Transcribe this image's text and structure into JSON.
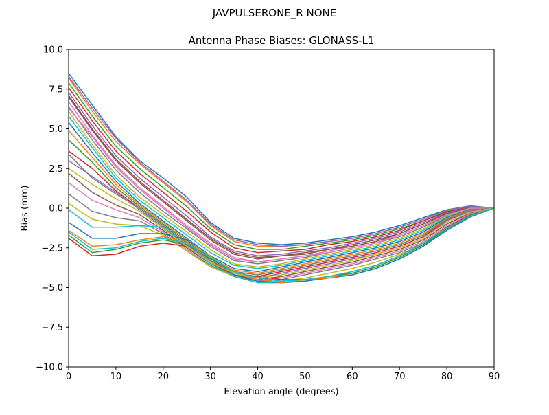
{
  "figure": {
    "suptitle": "JAVPULSERONE_R  NONE"
  },
  "chart_data": {
    "type": "line",
    "title": "Antenna Phase Biases: GLONASS-L1",
    "xlabel": "Elevation angle (degrees)",
    "ylabel": "Bias (mm)",
    "xlim": [
      0,
      90
    ],
    "ylim": [
      -10,
      10
    ],
    "xticks": [
      0,
      10,
      20,
      30,
      40,
      50,
      60,
      70,
      80,
      90
    ],
    "yticks": [
      -10.0,
      -7.5,
      -5.0,
      -2.5,
      0.0,
      2.5,
      5.0,
      7.5,
      10.0
    ],
    "xtick_labels": [
      "0",
      "10",
      "20",
      "30",
      "40",
      "50",
      "60",
      "70",
      "80",
      "90"
    ],
    "ytick_labels": [
      "−10.0",
      "−7.5",
      "−5.0",
      "−2.5",
      "0.0",
      "2.5",
      "5.0",
      "7.5",
      "10.0"
    ],
    "grid": false,
    "legend": "none",
    "x": [
      0,
      5,
      10,
      15,
      20,
      25,
      30,
      35,
      40,
      45,
      50,
      55,
      60,
      65,
      70,
      75,
      80,
      85,
      90
    ],
    "colors": [
      "#1f77b4",
      "#ff7f0e",
      "#2ca02c",
      "#d62728",
      "#9467bd",
      "#8c564b",
      "#e377c2",
      "#7f7f7f",
      "#bcbd22",
      "#17becf"
    ],
    "series": [
      {
        "values": [
          8.5,
          6.5,
          4.5,
          3.0,
          1.9,
          0.7,
          -0.9,
          -1.9,
          -2.2,
          -2.3,
          -2.2,
          -2.0,
          -1.8,
          -1.5,
          -1.1,
          -0.6,
          -0.1,
          0.15,
          0.0
        ]
      },
      {
        "values": [
          8.2,
          6.1,
          4.2,
          2.8,
          1.6,
          0.4,
          -1.1,
          -2.1,
          -2.4,
          -2.4,
          -2.3,
          -2.1,
          -1.9,
          -1.6,
          -1.2,
          -0.7,
          -0.15,
          0.12,
          0.0
        ]
      },
      {
        "values": [
          7.9,
          5.8,
          3.9,
          2.5,
          1.3,
          0.1,
          -1.3,
          -2.3,
          -2.6,
          -2.6,
          -2.4,
          -2.2,
          -2.0,
          -1.7,
          -1.3,
          -0.8,
          -0.2,
          0.1,
          0.0
        ]
      },
      {
        "values": [
          7.6,
          5.5,
          3.6,
          2.2,
          1.0,
          -0.2,
          -1.5,
          -2.5,
          -2.8,
          -2.7,
          -2.6,
          -2.3,
          -2.1,
          -1.8,
          -1.4,
          -0.8,
          -0.25,
          0.08,
          0.0
        ]
      },
      {
        "values": [
          7.3,
          5.2,
          3.3,
          1.9,
          0.7,
          -0.5,
          -1.8,
          -2.7,
          -3.0,
          -2.9,
          -2.7,
          -2.5,
          -2.2,
          -1.9,
          -1.5,
          -0.9,
          -0.3,
          0.06,
          0.0
        ]
      },
      {
        "values": [
          7.0,
          4.9,
          3.0,
          1.6,
          0.4,
          -0.8,
          -2.0,
          -2.9,
          -3.2,
          -3.0,
          -2.8,
          -2.6,
          -2.3,
          -2.0,
          -1.6,
          -1.0,
          -0.35,
          0.04,
          0.0
        ]
      },
      {
        "values": [
          6.7,
          4.6,
          2.7,
          1.3,
          0.1,
          -1.1,
          -2.2,
          -3.1,
          -3.4,
          -3.2,
          -3.0,
          -2.7,
          -2.4,
          -2.1,
          -1.7,
          -1.1,
          -0.4,
          0.02,
          0.0
        ]
      },
      {
        "values": [
          6.4,
          4.3,
          2.4,
          1.0,
          -0.2,
          -1.3,
          -2.4,
          -3.3,
          -3.5,
          -3.3,
          -3.1,
          -2.8,
          -2.5,
          -2.2,
          -1.8,
          -1.2,
          -0.45,
          0.0,
          0.0
        ]
      },
      {
        "values": [
          6.1,
          4.0,
          2.1,
          0.7,
          -0.4,
          -1.5,
          -2.6,
          -3.5,
          -3.7,
          -3.5,
          -3.2,
          -2.9,
          -2.6,
          -2.3,
          -1.9,
          -1.3,
          -0.5,
          -0.02,
          0.0
        ]
      },
      {
        "values": [
          5.8,
          3.8,
          1.9,
          0.5,
          -0.6,
          -1.7,
          -2.8,
          -3.6,
          -3.8,
          -3.6,
          -3.3,
          -3.0,
          -2.7,
          -2.4,
          -2.0,
          -1.4,
          -0.55,
          -0.05,
          0.0
        ]
      },
      {
        "values": [
          5.4,
          3.5,
          1.7,
          0.3,
          -0.8,
          -1.9,
          -3.0,
          -3.8,
          -4.0,
          -3.7,
          -3.4,
          -3.1,
          -2.8,
          -2.5,
          -2.1,
          -1.5,
          -0.6,
          -0.08,
          0.0
        ]
      },
      {
        "values": [
          4.9,
          3.2,
          1.5,
          0.2,
          -0.9,
          -2.0,
          -3.1,
          -3.9,
          -4.1,
          -3.8,
          -3.5,
          -3.2,
          -2.9,
          -2.6,
          -2.2,
          -1.6,
          -0.65,
          -0.1,
          0.0
        ]
      },
      {
        "values": [
          4.3,
          2.9,
          1.3,
          0.1,
          -1.0,
          -2.1,
          -3.2,
          -4.0,
          -4.2,
          -3.9,
          -3.6,
          -3.3,
          -3.0,
          -2.7,
          -2.3,
          -1.7,
          -0.7,
          -0.12,
          0.0
        ]
      },
      {
        "values": [
          3.6,
          2.5,
          1.1,
          0.0,
          -1.1,
          -2.2,
          -3.3,
          -4.1,
          -4.3,
          -4.0,
          -3.7,
          -3.4,
          -3.1,
          -2.8,
          -2.4,
          -1.8,
          -0.75,
          -0.15,
          0.0
        ]
      },
      {
        "values": [
          3.0,
          2.0,
          1.0,
          -0.1,
          -1.2,
          -2.3,
          -3.4,
          -4.2,
          -4.4,
          -4.1,
          -3.8,
          -3.5,
          -3.2,
          -2.9,
          -2.5,
          -1.9,
          -0.8,
          -0.18,
          0.0
        ]
      },
      {
        "values": [
          2.2,
          1.0,
          0.2,
          -0.4,
          -1.4,
          -2.5,
          -3.5,
          -4.2,
          -4.5,
          -4.3,
          -4.0,
          -3.7,
          -3.4,
          -3.0,
          -2.6,
          -2.0,
          -1.0,
          -0.3,
          0.0
        ]
      },
      {
        "values": [
          1.6,
          0.5,
          -0.1,
          -0.6,
          -1.5,
          -2.6,
          -3.6,
          -4.3,
          -4.6,
          -4.4,
          -4.1,
          -3.8,
          -3.5,
          -3.1,
          -2.7,
          -2.1,
          -1.1,
          -0.35,
          0.0
        ]
      },
      {
        "values": [
          0.9,
          -0.2,
          -0.6,
          -0.8,
          -1.6,
          -2.7,
          -3.6,
          -4.3,
          -4.6,
          -4.5,
          -4.2,
          -3.9,
          -3.6,
          -3.2,
          -2.8,
          -2.2,
          -1.2,
          -0.4,
          0.0
        ]
      },
      {
        "values": [
          0.3,
          -0.7,
          -1.0,
          -1.1,
          -1.7,
          -2.7,
          -3.7,
          -4.3,
          -4.7,
          -4.6,
          -4.4,
          -4.1,
          -3.8,
          -3.4,
          -2.9,
          -2.3,
          -1.3,
          -0.45,
          0.0
        ]
      },
      {
        "values": [
          -0.1,
          -1.2,
          -1.2,
          -1.1,
          -1.2,
          -2.4,
          -3.5,
          -4.3,
          -4.7,
          -4.7,
          -4.6,
          -4.4,
          -4.2,
          -3.8,
          -3.2,
          -2.4,
          -1.3,
          -0.5,
          0.0
        ]
      },
      {
        "values": [
          -0.9,
          -1.9,
          -1.9,
          -1.6,
          -1.6,
          -2.0,
          -3.1,
          -4.2,
          -4.6,
          -4.7,
          -4.6,
          -4.4,
          -4.2,
          -3.8,
          -3.2,
          -2.4,
          -1.4,
          -0.55,
          0.0
        ]
      },
      {
        "values": [
          -1.4,
          -2.4,
          -2.3,
          -2.0,
          -1.8,
          -2.1,
          -3.0,
          -4.1,
          -4.5,
          -4.7,
          -4.5,
          -4.4,
          -4.1,
          -3.7,
          -3.1,
          -2.3,
          -1.3,
          -0.5,
          0.0
        ]
      },
      {
        "values": [
          -1.7,
          -2.8,
          -2.6,
          -2.2,
          -2.0,
          -2.3,
          -3.2,
          -4.0,
          -4.4,
          -4.6,
          -4.5,
          -4.3,
          -4.1,
          -3.7,
          -3.1,
          -2.3,
          -1.3,
          -0.5,
          0.0
        ]
      },
      {
        "values": [
          -1.9,
          -3.0,
          -2.9,
          -2.4,
          -2.2,
          -2.4,
          -3.4,
          -4.1,
          -4.3,
          -4.5,
          -4.5,
          -4.3,
          -4.0,
          -3.6,
          -3.0,
          -2.2,
          -1.2,
          -0.45,
          0.0
        ]
      },
      {
        "values": [
          8.3,
          6.3,
          4.4,
          2.9,
          1.7,
          0.5,
          -1.0,
          -2.0,
          -2.3,
          -2.4,
          -2.3,
          -2.1,
          -1.9,
          -1.6,
          -1.2,
          -0.7,
          -0.12,
          0.12,
          0.0
        ]
      },
      {
        "values": [
          7.1,
          5.0,
          3.1,
          1.7,
          0.5,
          -0.7,
          -1.9,
          -2.8,
          -3.1,
          -3.0,
          -2.9,
          -2.6,
          -2.4,
          -2.1,
          -1.6,
          -1.0,
          -0.35,
          0.04,
          0.0
        ]
      },
      {
        "values": [
          6.3,
          4.5,
          2.6,
          1.2,
          0.0,
          -1.2,
          -2.3,
          -3.2,
          -3.4,
          -3.2,
          -3.0,
          -2.8,
          -2.5,
          -2.2,
          -1.7,
          -1.1,
          -0.42,
          0.0,
          0.0
        ]
      },
      {
        "values": [
          3.4,
          1.9,
          0.9,
          0.0,
          -1.1,
          -2.2,
          -3.3,
          -4.0,
          -4.2,
          -3.9,
          -3.6,
          -3.3,
          -3.0,
          -2.7,
          -2.3,
          -1.7,
          -0.72,
          -0.13,
          0.0
        ]
      },
      {
        "values": [
          2.5,
          1.5,
          0.6,
          -0.2,
          -1.3,
          -2.4,
          -3.4,
          -4.1,
          -4.4,
          -4.2,
          -3.9,
          -3.6,
          -3.3,
          -2.9,
          -2.5,
          -1.9,
          -0.9,
          -0.25,
          0.0
        ]
      },
      {
        "values": [
          -1.5,
          -2.6,
          -2.5,
          -2.1,
          -1.9,
          -2.2,
          -3.1,
          -4.0,
          -4.4,
          -4.6,
          -4.5,
          -4.3,
          -4.0,
          -3.6,
          -3.0,
          -2.2,
          -1.25,
          -0.48,
          0.0
        ]
      }
    ]
  }
}
